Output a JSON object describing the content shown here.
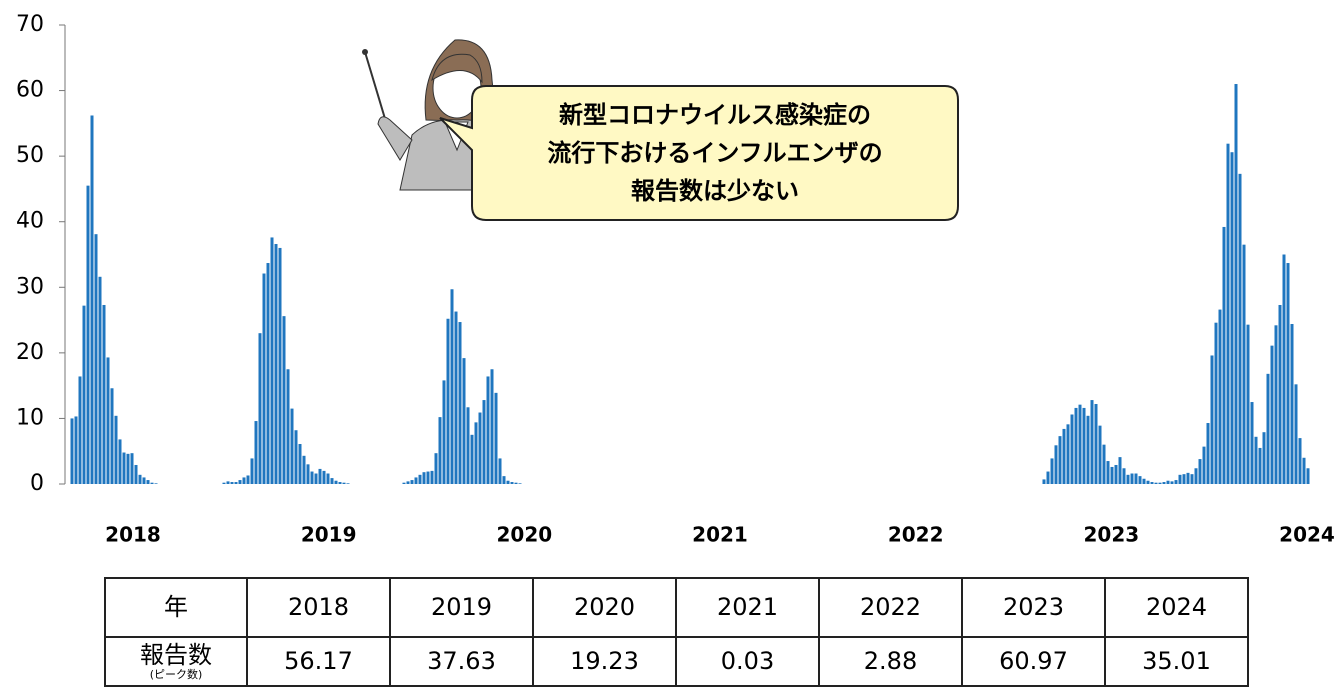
{
  "chart_data": {
    "type": "bar",
    "color": "#1f76bf",
    "ylim": [
      0,
      70
    ],
    "yticks": [
      0,
      10,
      20,
      30,
      40,
      50,
      60,
      70
    ],
    "year_labels": [
      "2018",
      "2019",
      "2020",
      "2021",
      "2022",
      "2023",
      "2024"
    ],
    "annotation": [
      "新型コロナウイルス感染症の",
      "流行下おけるインフルエンザの",
      "報告数は少ない"
    ],
    "values": [
      10,
      10.3,
      16.4,
      27.2,
      45.5,
      56.2,
      38.1,
      31.6,
      27.3,
      19.3,
      14.6,
      10.4,
      6.8,
      4.8,
      4.6,
      4.7,
      2.9,
      1.4,
      1.0,
      0.6,
      0.2,
      0.1,
      0,
      0,
      0,
      0,
      0,
      0,
      0,
      0,
      0,
      0,
      0,
      0,
      0,
      0,
      0,
      0,
      0.2,
      0.4,
      0.3,
      0.3,
      0.6,
      1.0,
      1.3,
      3.9,
      9.6,
      23,
      32.1,
      33.7,
      37.6,
      36.6,
      36.0,
      25.6,
      17.5,
      11.5,
      8.2,
      6.1,
      4.3,
      3.0,
      1.9,
      1.6,
      2.3,
      2.0,
      1.6,
      0.9,
      0.5,
      0.3,
      0.2,
      0.1,
      0,
      0,
      0,
      0,
      0,
      0,
      0,
      0,
      0,
      0,
      0,
      0,
      0,
      0.2,
      0.4,
      0.6,
      1.0,
      1.4,
      1.8,
      1.9,
      2.0,
      4.7,
      10.2,
      15.8,
      25.2,
      29.7,
      26.3,
      24.7,
      19.2,
      11.7,
      7.5,
      9.4,
      10.9,
      12.8,
      16.4,
      17.5,
      13.9,
      3.9,
      1.2,
      0.5,
      0.3,
      0.2,
      0.1,
      0,
      0,
      0,
      0,
      0,
      0,
      0,
      0,
      0,
      0,
      0,
      0,
      0,
      0,
      0,
      0,
      0,
      0,
      0,
      0,
      0,
      0,
      0,
      0,
      0,
      0,
      0,
      0,
      0,
      0,
      0,
      0,
      0,
      0,
      0,
      0,
      0,
      0,
      0,
      0,
      0,
      0,
      0,
      0,
      0,
      0,
      0,
      0,
      0,
      0,
      0,
      0,
      0,
      0,
      0,
      0,
      0,
      0,
      0,
      0,
      0,
      0,
      0,
      0,
      0,
      0,
      0,
      0,
      0,
      0,
      0,
      0,
      0,
      0,
      0,
      0,
      0,
      0,
      0,
      0,
      0,
      0,
      0,
      0,
      0,
      0,
      0,
      0,
      0,
      0,
      0,
      0,
      0,
      0,
      0,
      0,
      0,
      0,
      0,
      0,
      0,
      0,
      0,
      0,
      0,
      0,
      0,
      0,
      0,
      0,
      0,
      0,
      0,
      0,
      0,
      0,
      0,
      0,
      0,
      0,
      0,
      0,
      0,
      0,
      0,
      0,
      0,
      0,
      0,
      0,
      0.7,
      1.9,
      3.9,
      5.9,
      7.3,
      8.4,
      9.1,
      10.6,
      11.6,
      12.1,
      11.6,
      10.4,
      12.8,
      12.2,
      8.9,
      6.0,
      3.5,
      2.6,
      2.9,
      4.1,
      2.4,
      1.4,
      1.6,
      1.6,
      1.2,
      0.8,
      0.5,
      0.3,
      0.2,
      0.2,
      0.3,
      0.5,
      0.4,
      0.6,
      1.4,
      1.5,
      1.7,
      1.5,
      2.4,
      3.8,
      5.7,
      9.3,
      19.6,
      24.6,
      26.6,
      39.2,
      51.9,
      50.6,
      61.0,
      47.3,
      36.5,
      24.3,
      12.5,
      7.2,
      5.5,
      7.9,
      16.8,
      21.1,
      24.2,
      27.3,
      35.0,
      33.7,
      24.4,
      15.2,
      7.0,
      4.0,
      2.4
    ]
  },
  "table": {
    "header": [
      "年",
      "2018",
      "2019",
      "2020",
      "2021",
      "2022",
      "2023",
      "2024"
    ],
    "row_label": "報告数",
    "row_note": "(ピーク数)",
    "row": [
      "56.17",
      "37.63",
      "19.23",
      "0.03",
      "2.88",
      "60.97",
      "35.01"
    ]
  }
}
